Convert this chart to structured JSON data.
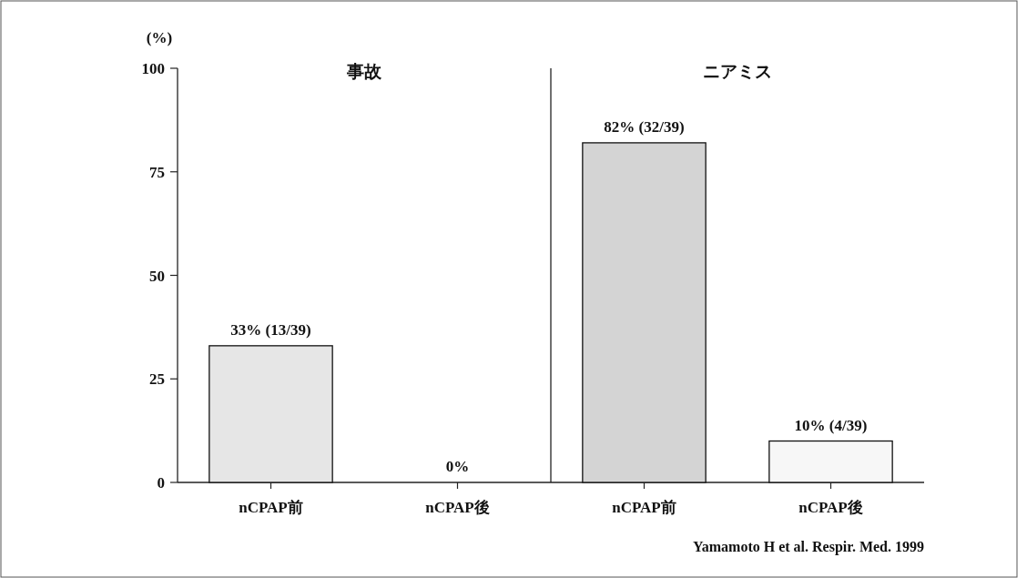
{
  "chart_data": [
    {
      "type": "bar",
      "title": "事故",
      "ylabel": "(%)",
      "categories": [
        "nCPAP前",
        "nCPAP後"
      ],
      "values": [
        33,
        0
      ],
      "colors": [
        "#e6e6e6",
        "#f4f4f4"
      ],
      "value_labels": [
        "33% (13/39)",
        "0%"
      ],
      "ylim": [
        0,
        100
      ],
      "yticks": [
        0,
        25,
        50,
        75,
        100
      ]
    },
    {
      "type": "bar",
      "title": "ニアミス",
      "categories": [
        "nCPAP前",
        "nCPAP後"
      ],
      "values": [
        82,
        10
      ],
      "colors": [
        "#d4d4d4",
        "#f7f7f7"
      ],
      "value_labels": [
        "82% (32/39)",
        "10% (4/39)"
      ],
      "ylim": [
        0,
        100
      ],
      "tick_labels": "x",
      "annotations": [
        "Yamamoto H et al. Respir. Med. 1999"
      ]
    }
  ]
}
